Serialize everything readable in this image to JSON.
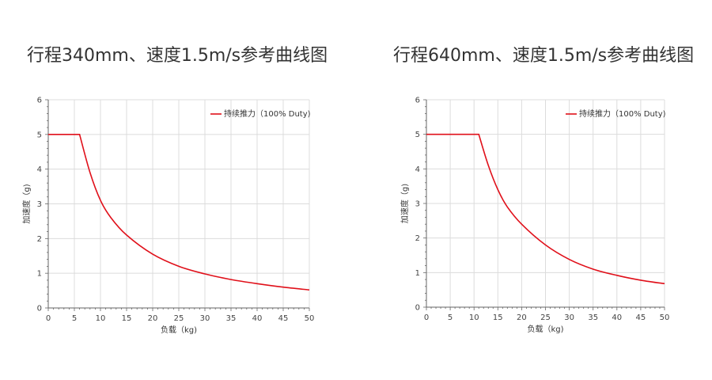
{
  "charts": [
    {
      "title": "行程340mm、速度1.5m/s参考曲线图"
    },
    {
      "title": "行程640mm、速度1.5m/s参考曲线图"
    }
  ],
  "chart_data": [
    {
      "type": "line",
      "title": "行程340mm、速度1.5m/s参考曲线图",
      "xlabel": "负载（kg)",
      "ylabel": "加速度（g)",
      "xlim": [
        0,
        50
      ],
      "ylim": [
        0,
        6
      ],
      "xticks": [
        0,
        5,
        10,
        15,
        20,
        25,
        30,
        35,
        40,
        45,
        50
      ],
      "yticks": [
        0,
        1,
        2,
        3,
        4,
        5,
        6
      ],
      "grid": true,
      "legend_position": "top-right",
      "series": [
        {
          "name": "持续推力（100% Duty)",
          "color": "#e0101a",
          "x": [
            0,
            6,
            8,
            10,
            12,
            15,
            20,
            25,
            30,
            35,
            40,
            45,
            50
          ],
          "y": [
            5.0,
            5.0,
            3.9,
            3.1,
            2.6,
            2.1,
            1.55,
            1.2,
            0.98,
            0.82,
            0.7,
            0.6,
            0.52
          ]
        }
      ]
    },
    {
      "type": "line",
      "title": "行程640mm、速度1.5m/s参考曲线图",
      "xlabel": "负载（kg)",
      "ylabel": "加速度（g)",
      "xlim": [
        0,
        50
      ],
      "ylim": [
        0,
        6
      ],
      "xticks": [
        0,
        5,
        10,
        15,
        20,
        25,
        30,
        35,
        40,
        45,
        50
      ],
      "yticks": [
        0,
        1,
        2,
        3,
        4,
        5,
        6
      ],
      "grid": true,
      "legend_position": "top-right",
      "series": [
        {
          "name": "持续推力（100% Duty)",
          "color": "#e0101a",
          "x": [
            0,
            11,
            13,
            15,
            17,
            20,
            25,
            30,
            35,
            40,
            45,
            50
          ],
          "y": [
            5.0,
            5.0,
            4.1,
            3.4,
            2.9,
            2.4,
            1.8,
            1.38,
            1.1,
            0.92,
            0.78,
            0.68
          ]
        }
      ]
    }
  ]
}
